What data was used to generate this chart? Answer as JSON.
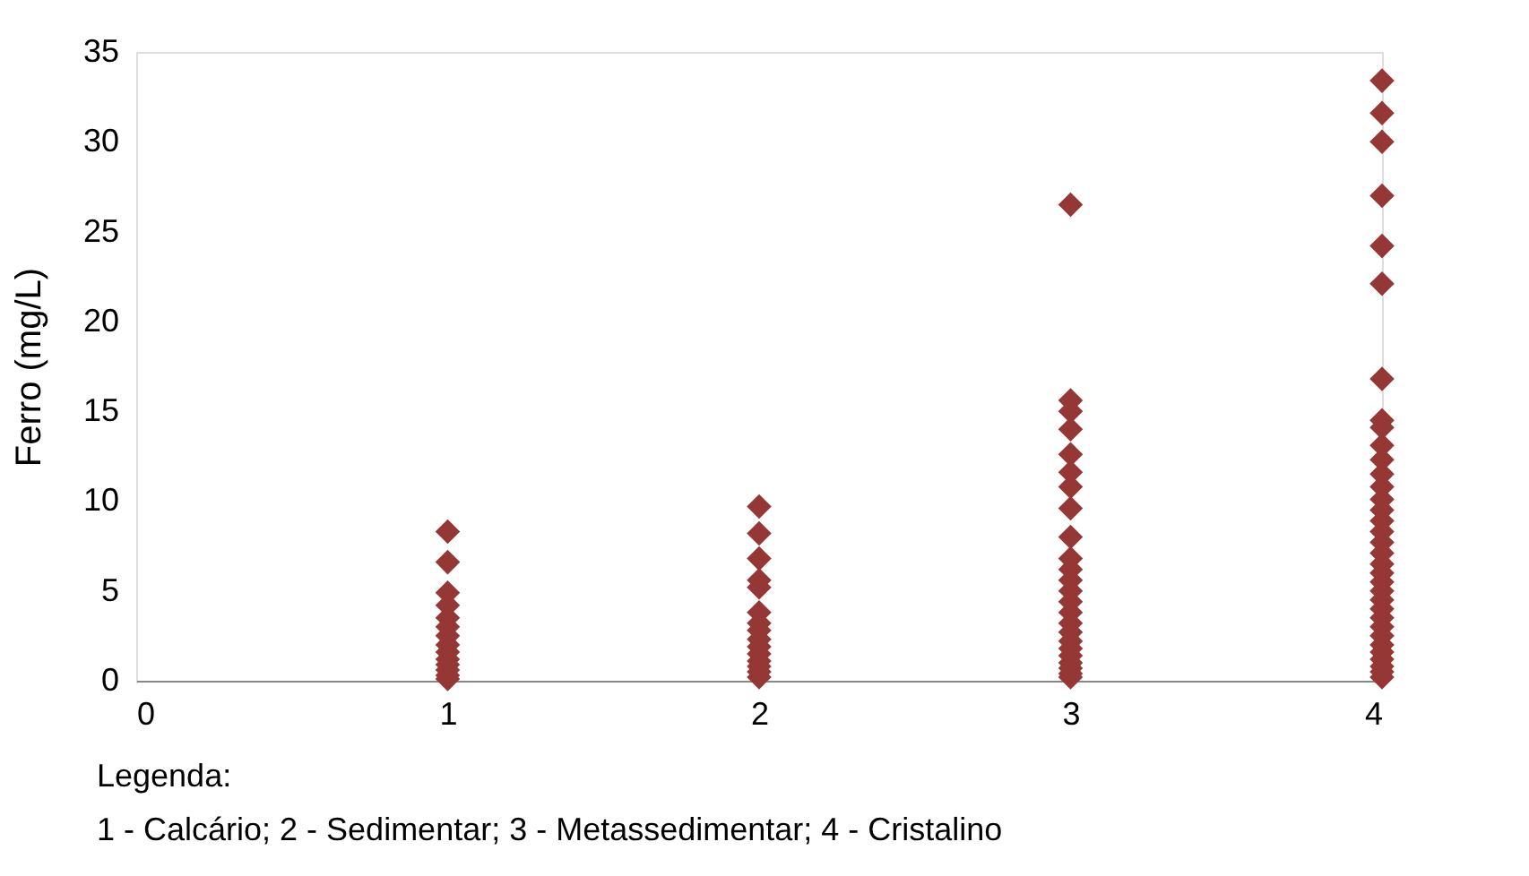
{
  "chart_data": {
    "type": "scatter",
    "ylabel": "Ferro (mg/L)",
    "xlim": [
      0,
      4
    ],
    "xticks": [
      0,
      1,
      2,
      3,
      4
    ],
    "ylim": [
      0,
      35
    ],
    "yticks": [
      0,
      5,
      10,
      15,
      20,
      25,
      30,
      35
    ],
    "grid": false,
    "legend": false,
    "marker": "diamond",
    "annotations": [
      "Legenda:",
      "1 - Calcário; 2 - Sedimentar; 3 - Metassedimentar; 4 - Cristalino"
    ],
    "series": [
      {
        "color": "#953735",
        "x": [
          1,
          1,
          1,
          1,
          1,
          1,
          1,
          1,
          1,
          1,
          1,
          1,
          1,
          1,
          2,
          2,
          2,
          2,
          2,
          2,
          2,
          2,
          2,
          2,
          2,
          2,
          2,
          2,
          2,
          3,
          3,
          3,
          3,
          3,
          3,
          3,
          3,
          3,
          3,
          3,
          3,
          3,
          3,
          3,
          3,
          3,
          3,
          3,
          3,
          3,
          3,
          3,
          3,
          4,
          4,
          4,
          4,
          4,
          4,
          4,
          4,
          4,
          4,
          4,
          4,
          4,
          4,
          4,
          4,
          4,
          4,
          4,
          4,
          4,
          4,
          4,
          4,
          4,
          4,
          4,
          4,
          4,
          4,
          4,
          4,
          4,
          4
        ],
        "values": [
          8.3,
          6.6,
          4.9,
          4.2,
          3.5,
          3.0,
          2.5,
          2.0,
          1.6,
          1.2,
          0.9,
          0.6,
          0.3,
          0.1,
          9.7,
          8.2,
          6.8,
          5.6,
          5.2,
          3.8,
          3.2,
          2.8,
          2.3,
          1.9,
          1.5,
          1.1,
          0.8,
          0.5,
          0.2,
          26.5,
          15.6,
          15.0,
          14.0,
          12.6,
          11.6,
          10.8,
          9.6,
          8.0,
          6.8,
          6.2,
          5.6,
          5.0,
          4.4,
          3.8,
          3.2,
          2.7,
          2.2,
          1.8,
          1.4,
          1.0,
          0.7,
          0.4,
          0.2,
          33.4,
          31.6,
          30.0,
          27.0,
          24.2,
          22.1,
          16.8,
          14.5,
          14.1,
          13.1,
          12.3,
          11.5,
          10.8,
          10.1,
          9.5,
          8.9,
          8.3,
          7.7,
          7.1,
          6.5,
          6.0,
          5.5,
          5.0,
          4.5,
          4.0,
          3.5,
          3.0,
          2.5,
          2.0,
          1.6,
          1.2,
          0.8,
          0.5,
          0.2
        ]
      }
    ]
  }
}
